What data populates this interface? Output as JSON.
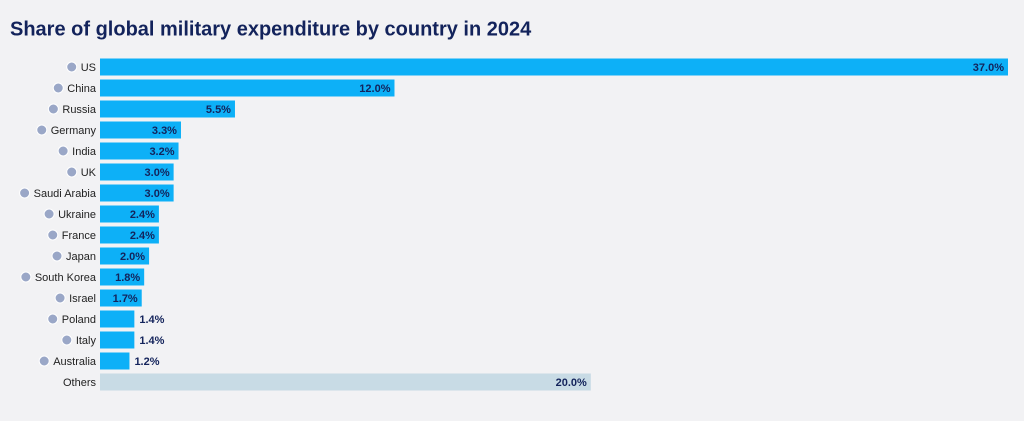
{
  "chart_data": {
    "type": "hbar",
    "title": "Share of global military expenditure by country in 2024",
    "categories": [
      "US",
      "China",
      "Russia",
      "Germany",
      "India",
      "UK",
      "Saudi Arabia",
      "Ukraine",
      "France",
      "Japan",
      "South Korea",
      "Israel",
      "Poland",
      "Italy",
      "Australia",
      "Others"
    ],
    "values": [
      37.0,
      12.0,
      5.5,
      3.3,
      3.2,
      3.0,
      3.0,
      2.4,
      2.4,
      2.0,
      1.8,
      1.7,
      1.4,
      1.4,
      1.2,
      20.0
    ],
    "value_labels": [
      "37.0%",
      "12.0%",
      "5.5%",
      "3.3%",
      "3.2%",
      "3.0%",
      "3.0%",
      "2.4%",
      "2.4%",
      "2.0%",
      "1.8%",
      "1.7%",
      "1.4%",
      "1.4%",
      "1.2%",
      "20.0%"
    ],
    "colors": [
      "#0db0f7",
      "#0db0f7",
      "#0db0f7",
      "#0db0f7",
      "#0db0f7",
      "#0db0f7",
      "#0db0f7",
      "#0db0f7",
      "#0db0f7",
      "#0db0f7",
      "#0db0f7",
      "#0db0f7",
      "#0db0f7",
      "#0db0f7",
      "#0db0f7",
      "#c8dbe5"
    ],
    "xlim": [
      0,
      37
    ]
  }
}
